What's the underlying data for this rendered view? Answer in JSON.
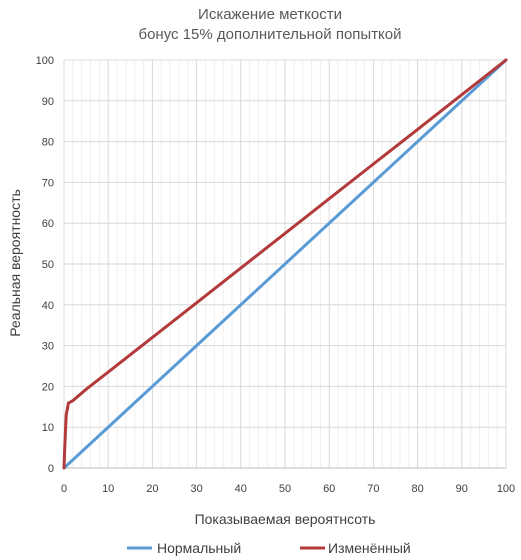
{
  "chart_data": {
    "type": "line",
    "title": [
      "Искажение меткости",
      "бонус 15% дополнительной попыткой"
    ],
    "xlabel": "Показываемая вероятнсоть",
    "ylabel": "Реальная вероятность",
    "xlim": [
      0,
      100
    ],
    "ylim": [
      0,
      100
    ],
    "xticks": [
      0,
      10,
      20,
      30,
      40,
      50,
      60,
      70,
      80,
      90,
      100
    ],
    "yticks": [
      0,
      10,
      20,
      30,
      40,
      50,
      60,
      70,
      80,
      90,
      100
    ],
    "grid": true,
    "legend_position": "bottom",
    "series": [
      {
        "name": "Нормальный",
        "color": "#5B9BD5",
        "x": [
          0,
          100
        ],
        "y": [
          0,
          100
        ]
      },
      {
        "name": "Изменённый",
        "color": "#B23A3A",
        "x": [
          0,
          0.2,
          0.5,
          1,
          2,
          5,
          10,
          20,
          30,
          40,
          50,
          60,
          70,
          80,
          90,
          100
        ],
        "y": [
          0,
          6,
          13,
          15.9,
          16.5,
          19.3,
          23.5,
          32,
          40.5,
          49,
          57.5,
          66,
          74.5,
          83,
          91.5,
          100
        ]
      }
    ]
  }
}
